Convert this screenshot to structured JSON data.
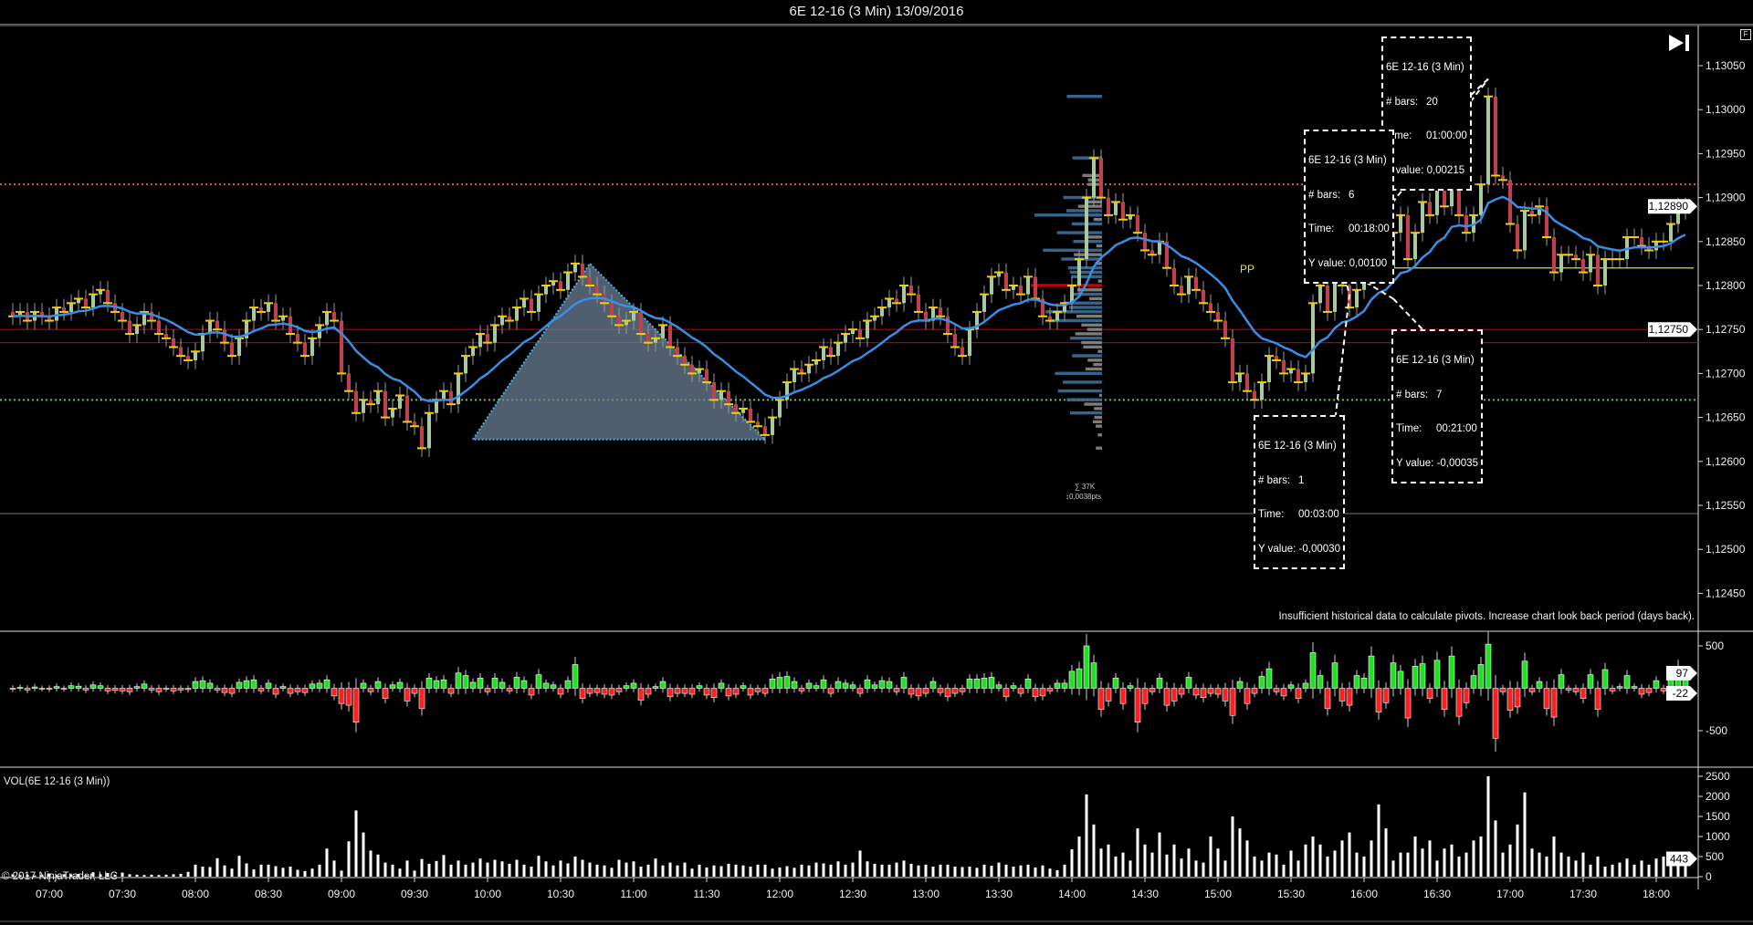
{
  "window": {
    "title": "6E 12-16 (3 Min)  13/09/2016",
    "f_button": "F",
    "skip_icon": "skip-to-end-icon"
  },
  "colors": {
    "background": "#000000",
    "up_body": "#a8c8a0",
    "down_body": "#c0404c",
    "close_tick": "#f0d000",
    "ema": "#3a8ee6",
    "delta_up": "#22e022",
    "delta_down": "#ff2020",
    "volume": "#ffffff",
    "profile": "#3f6f98",
    "profile_outer": "#8a8a8a",
    "poc": "#e00000",
    "triangle_fill": "#6a7f94",
    "triangle_edge": "#4fb0e8"
  },
  "main_panel": {
    "price_ticks": [
      "1,13050",
      "1,13000",
      "1,12950",
      "1,12900",
      "1,12850",
      "1,12800",
      "1,12750",
      "1,12700",
      "1,12650",
      "1,12600",
      "1,12550",
      "1,12500",
      "1,12450"
    ],
    "price_markers": [
      {
        "label": "1,12890",
        "price": 1.1289
      },
      {
        "label": "1,12750",
        "price": 1.1275
      }
    ],
    "levels": [
      {
        "price": 1.12915,
        "style": "dotted",
        "color": "#c86060"
      },
      {
        "price": 1.1267,
        "style": "dotted",
        "color": "#80c020"
      },
      {
        "price": 1.1275,
        "style": "solid",
        "color": "#c00000"
      },
      {
        "price": 1.12735,
        "style": "solid",
        "color": "#8a1010"
      }
    ],
    "pivot": {
      "label": "PP",
      "price": 1.1282,
      "from": "15:51",
      "color": "#e0e040"
    },
    "pivot_message": "Insufficient historical data to calculate pivots. Increase chart look back period (days back).",
    "profile_sum": "∑ 37K",
    "profile_range": "↕0,0038pts",
    "triangle": [
      [
        "09:54",
        1.12625
      ],
      [
        "10:42",
        1.12825
      ],
      [
        "11:54",
        1.12625
      ]
    ],
    "ruler": {
      "anchor": [
        "15:51",
        1.1282
      ],
      "boxes": [
        {
          "symbol": "6E 12-16 (3 Min)",
          "bars_label": "# bars:",
          "bars": "20",
          "time_label": "Time:",
          "time": "01:00:00",
          "y_label": "Y value:",
          "y": "0,00215",
          "end": [
            "16:51",
            1.13035
          ]
        },
        {
          "symbol": "6E 12-16 (3 Min)",
          "bars_label": "# bars:",
          "bars": "6",
          "time_label": "Time:",
          "time": "00:18:00",
          "y_label": "Y value:",
          "y": "0,00100",
          "end": [
            "16:09",
            1.1292
          ]
        },
        {
          "symbol": "6E 12-16 (3 Min)",
          "bars_label": "# bars:",
          "bars": "7",
          "time_label": "Time:",
          "time": "00:21:00",
          "y_label": "Y value:",
          "y": "-0,00035",
          "end": [
            "16:12",
            1.12785
          ]
        },
        {
          "symbol": "6E 12-16 (3 Min)",
          "bars_label": "# bars:",
          "bars": "1",
          "time_label": "Time:",
          "time": "00:03:00",
          "y_label": "Y value:",
          "y": "-0,00030",
          "end": [
            "15:54",
            1.1279
          ]
        }
      ]
    }
  },
  "delta_panel": {
    "ticks": [
      "500",
      "-500"
    ],
    "markers": [
      "97",
      "-22"
    ]
  },
  "volume_panel": {
    "title": "VOL(6E 12-16 (3 Min))",
    "ticks": [
      "2500",
      "2000",
      "1500",
      "1000",
      "500",
      "0"
    ],
    "marker": "443"
  },
  "copyright": "© 2017 NinjaTrader, LLC",
  "time_axis": [
    "07:00",
    "07:30",
    "08:00",
    "08:30",
    "09:00",
    "09:30",
    "10:00",
    "10:30",
    "11:00",
    "11:30",
    "12:00",
    "12:30",
    "13:00",
    "13:30",
    "14:00",
    "14:30",
    "15:00",
    "15:30",
    "16:00",
    "16:30",
    "17:00",
    "17:30",
    "18:00"
  ],
  "chart_data": {
    "type": "candlestick",
    "first_bar": "06:45",
    "bar_minutes": 3,
    "close": [
      1.12765,
      1.1277,
      1.1276,
      1.1277,
      1.12765,
      1.1276,
      1.12775,
      1.1277,
      1.1278,
      1.12785,
      1.12775,
      1.1279,
      1.12795,
      1.1278,
      1.1277,
      1.1276,
      1.12745,
      1.12755,
      1.1277,
      1.1276,
      1.12745,
      1.1274,
      1.1273,
      1.1272,
      1.12715,
      1.12725,
      1.12745,
      1.1276,
      1.1275,
      1.12735,
      1.1272,
      1.1274,
      1.1276,
      1.12775,
      1.1277,
      1.1278,
      1.1276,
      1.12765,
      1.12745,
      1.12735,
      1.1272,
      1.1274,
      1.12755,
      1.1277,
      1.1276,
      1.127,
      1.1268,
      1.12655,
      1.1267,
      1.12665,
      1.1268,
      1.1265,
      1.1266,
      1.12675,
      1.12645,
      1.1264,
      1.12615,
      1.12655,
      1.1267,
      1.1268,
      1.12665,
      1.127,
      1.1272,
      1.1273,
      1.12745,
      1.12735,
      1.12755,
      1.12765,
      1.1276,
      1.12775,
      1.12785,
      1.1277,
      1.1279,
      1.128,
      1.12805,
      1.12795,
      1.12815,
      1.12825,
      1.1281,
      1.128,
      1.1279,
      1.1278,
      1.12765,
      1.12755,
      1.1276,
      1.1277,
      1.12745,
      1.12735,
      1.1274,
      1.12755,
      1.1273,
      1.1272,
      1.1271,
      1.127,
      1.12705,
      1.1269,
      1.1267,
      1.1268,
      1.12665,
      1.12655,
      1.1266,
      1.12645,
      1.1264,
      1.1263,
      1.1265,
      1.1267,
      1.1269,
      1.12705,
      1.127,
      1.1271,
      1.12715,
      1.1273,
      1.1272,
      1.12735,
      1.12745,
      1.1275,
      1.1274,
      1.1276,
      1.12765,
      1.12775,
      1.12785,
      1.1278,
      1.128,
      1.1279,
      1.1277,
      1.1276,
      1.12775,
      1.12765,
      1.12745,
      1.1273,
      1.1272,
      1.1275,
      1.1277,
      1.1279,
      1.1281,
      1.12815,
      1.12795,
      1.128,
      1.1279,
      1.1281,
      1.12785,
      1.12765,
      1.1276,
      1.1277,
      1.1278,
      1.128,
      1.1283,
      1.129,
      1.12945,
      1.129,
      1.1288,
      1.12895,
      1.12875,
      1.1288,
      1.1286,
      1.1284,
      1.12835,
      1.1285,
      1.1282,
      1.128,
      1.1279,
      1.1281,
      1.12795,
      1.1278,
      1.1277,
      1.1276,
      1.1274,
      1.1269,
      1.127,
      1.1268,
      1.1267,
      1.1269,
      1.1272,
      1.12715,
      1.127,
      1.12705,
      1.1269,
      1.127,
      1.1278,
      1.128,
      1.1277,
      1.1282,
      1.128,
      1.12775,
      1.12795,
      1.1281,
      1.1287,
      1.1284,
      1.1282,
      1.1286,
      1.1288,
      1.1283,
      1.1286,
      1.12895,
      1.1288,
      1.1292,
      1.1289,
      1.12945,
      1.1288,
      1.1286,
      1.1288,
      1.12915,
      1.13015,
      1.12925,
      1.1292,
      1.1287,
      1.1284,
      1.12885,
      1.1288,
      1.1289,
      1.12855,
      1.12815,
      1.12835,
      1.12835,
      1.1283,
      1.12815,
      1.12835,
      1.128,
      1.1283,
      1.1283,
      1.1283,
      1.12855,
      1.12855,
      1.12845,
      1.1284,
      1.1285,
      1.1285,
      1.1287,
      1.1289,
      1.12885
    ],
    "volume": [
      60,
      40,
      50,
      30,
      40,
      80,
      40,
      60,
      50,
      70,
      40,
      110,
      60,
      90,
      50,
      100,
      60,
      50,
      40,
      50,
      40,
      50,
      60,
      70,
      120,
      300,
      250,
      240,
      460,
      280,
      200,
      520,
      330,
      180,
      300,
      300,
      260,
      220,
      250,
      170,
      140,
      200,
      300,
      700,
      400,
      150,
      880,
      1650,
      1100,
      650,
      550,
      350,
      300,
      200,
      400,
      150,
      440,
      320,
      390,
      540,
      300,
      400,
      300,
      350,
      450,
      350,
      420,
      380,
      320,
      420,
      300,
      250,
      520,
      380,
      280,
      400,
      330,
      500,
      420,
      350,
      300,
      280,
      220,
      420,
      350,
      380,
      250,
      300,
      450,
      280,
      350,
      280,
      350,
      200,
      300,
      230,
      280,
      260,
      320,
      300,
      280,
      250,
      300,
      300,
      200,
      230,
      260,
      220,
      300,
      280,
      350,
      330,
      300,
      380,
      300,
      350,
      650,
      380,
      320,
      300,
      300,
      350,
      400,
      320,
      280,
      300,
      250,
      300,
      300,
      250,
      240,
      250,
      220,
      300,
      270,
      350,
      300,
      250,
      280,
      300,
      230,
      280,
      200,
      160,
      300,
      680,
      1000,
      2050,
      1300,
      700,
      800,
      500,
      600,
      400,
      1200,
      800,
      600,
      1100,
      550,
      800,
      450,
      700,
      400,
      350,
      1000,
      700,
      400,
      1500,
      1200,
      900,
      500,
      400,
      600,
      550,
      300,
      650,
      400,
      800,
      1000,
      800,
      500,
      650,
      900,
      1100,
      600,
      500,
      900,
      1800,
      1200,
      400,
      600,
      600,
      1000,
      700,
      900,
      400,
      700,
      800,
      500,
      600,
      900,
      1000,
      2500,
      1400,
      600,
      800,
      1300,
      2100,
      700,
      600,
      500,
      1000,
      600,
      500,
      400,
      600,
      300,
      500,
      250,
      300,
      350,
      450,
      300,
      400,
      300,
      450,
      500,
      450,
      400,
      443
    ],
    "delta": [
      -10,
      10,
      -20,
      15,
      -5,
      -10,
      20,
      -5,
      30,
      25,
      -20,
      40,
      30,
      -30,
      -25,
      -30,
      -40,
      20,
      50,
      -20,
      -40,
      -10,
      -30,
      -20,
      -15,
      80,
      90,
      60,
      -20,
      -50,
      -60,
      70,
      90,
      100,
      -30,
      60,
      -70,
      20,
      -60,
      -40,
      -50,
      50,
      60,
      100,
      -90,
      -180,
      -200,
      -400,
      60,
      -40,
      80,
      -120,
      40,
      70,
      -150,
      -60,
      -240,
      120,
      90,
      100,
      -60,
      180,
      150,
      70,
      120,
      -40,
      120,
      70,
      -30,
      130,
      90,
      -80,
      160,
      60,
      40,
      -70,
      90,
      280,
      -120,
      -60,
      -50,
      -70,
      -80,
      -40,
      30,
      60,
      -140,
      -70,
      20,
      80,
      -100,
      -60,
      -60,
      -70,
      30,
      -80,
      -110,
      60,
      -90,
      -70,
      30,
      -80,
      -40,
      -60,
      110,
      130,
      140,
      80,
      -30,
      60,
      30,
      100,
      -60,
      80,
      60,
      40,
      -60,
      100,
      40,
      90,
      80,
      -40,
      130,
      -70,
      -90,
      -60,
      80,
      -50,
      -100,
      -60,
      -40,
      110,
      110,
      120,
      130,
      40,
      -100,
      30,
      -60,
      110,
      -100,
      -90,
      -30,
      60,
      60,
      200,
      230,
      500,
      300,
      -250,
      -150,
      120,
      -180,
      30,
      -400,
      -180,
      -40,
      120,
      -200,
      -150,
      -70,
      130,
      -80,
      -110,
      -60,
      -70,
      -150,
      -320,
      80,
      -180,
      -60,
      140,
      230,
      -40,
      -90,
      40,
      -120,
      60,
      420,
      150,
      -240,
      300,
      -150,
      -200,
      150,
      120,
      380,
      -280,
      -170,
      300,
      200,
      -350,
      260,
      290,
      -120,
      330,
      -250,
      380,
      -330,
      -170,
      150,
      280,
      520,
      -590,
      -40,
      -260,
      -220,
      320,
      -40,
      80,
      -240,
      -340,
      160,
      -20,
      -40,
      -120,
      160,
      -250,
      220,
      -30,
      20,
      150,
      20,
      -70,
      -50,
      90,
      -30,
      150,
      250,
      97
    ],
    "price_range": [
      1.1245,
      1.1308
    ],
    "delta_range": [
      -600,
      600
    ],
    "volume_range": [
      0,
      2600
    ]
  }
}
